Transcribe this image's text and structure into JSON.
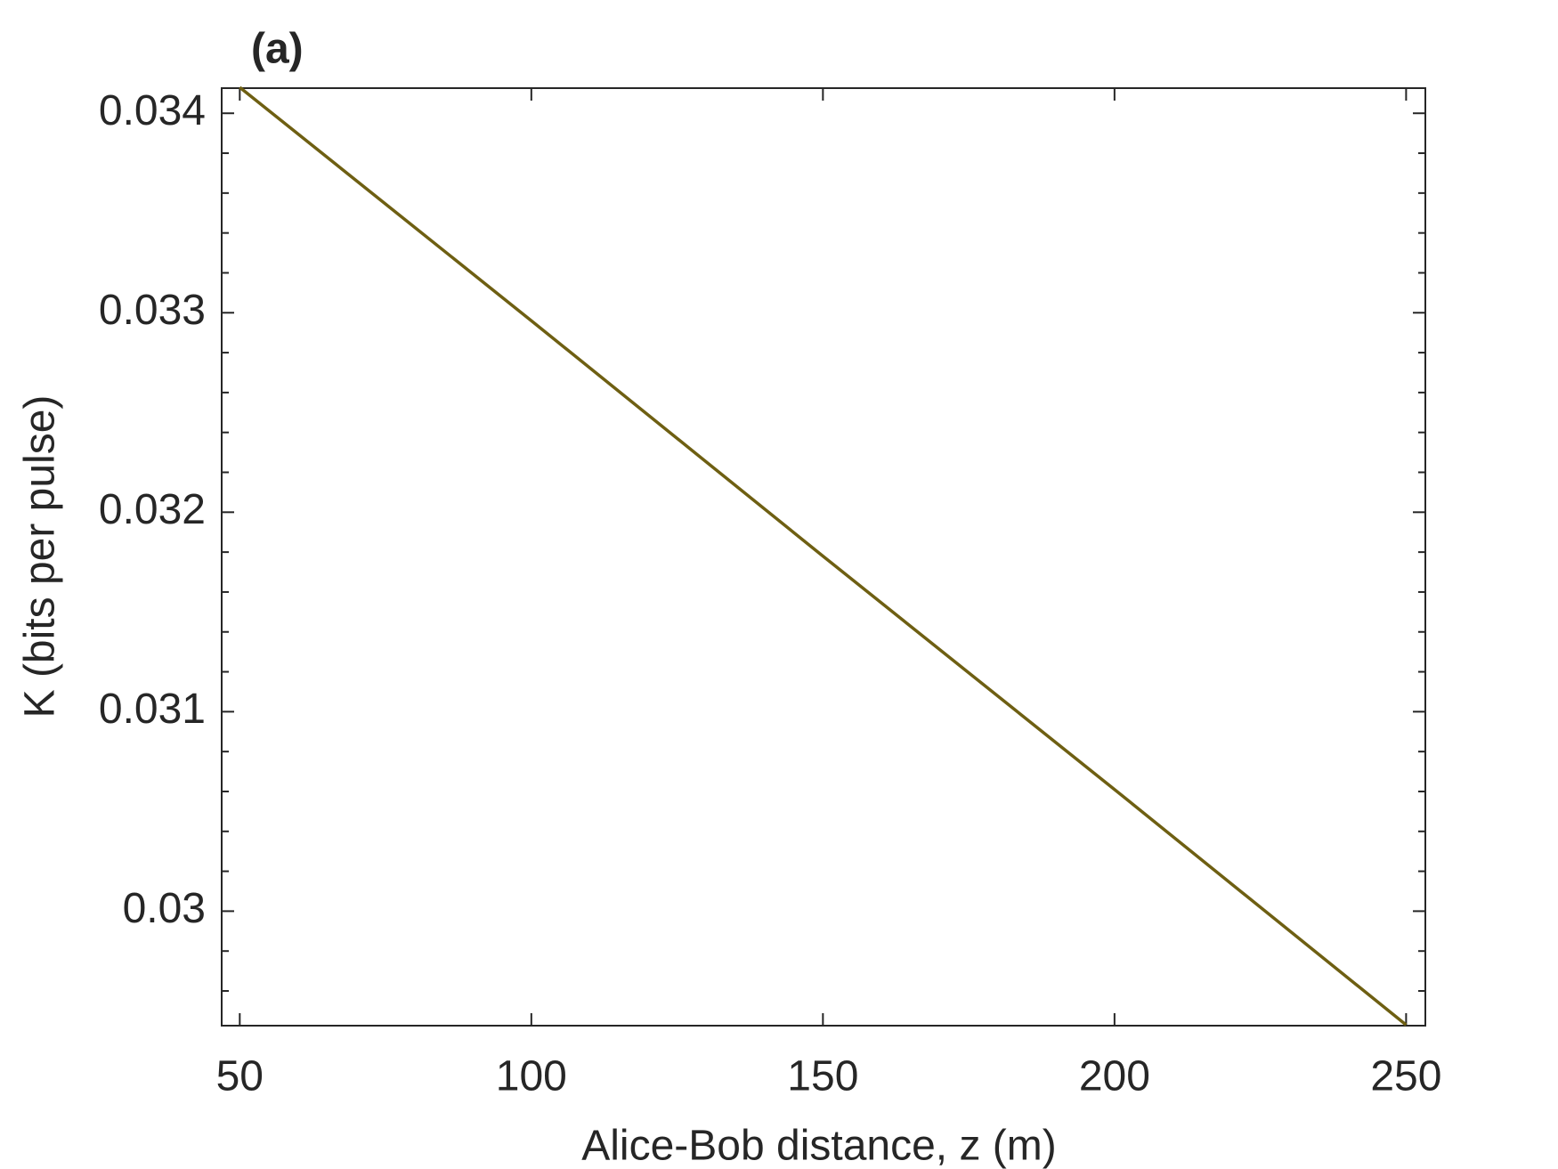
{
  "chart_data": {
    "type": "line",
    "title": "(a)",
    "x_label": "Alice-Bob distance, z (m)",
    "y_label": "K (bits per pulse)",
    "x": [
      50,
      100,
      150,
      200,
      250
    ],
    "series": [
      {
        "color": "#6e5f12",
        "values": [
          0.03413,
          0.03296,
          0.03178,
          0.03061,
          0.02943
        ]
      }
    ],
    "xlim": [
      46.9,
      253.3
    ],
    "ylim": [
      0.029426,
      0.034126
    ],
    "xticks": [
      50,
      100,
      150,
      200,
      250
    ],
    "yticks": [
      0.03,
      0.031,
      0.032,
      0.033,
      0.034
    ],
    "yminorticks": [
      0.0296,
      0.0298,
      0.0302,
      0.0304,
      0.0306,
      0.0308,
      0.0312,
      0.0314,
      0.0316,
      0.0318,
      0.0322,
      0.0324,
      0.0326,
      0.0328,
      0.0332,
      0.0334,
      0.0336,
      0.0338
    ]
  }
}
